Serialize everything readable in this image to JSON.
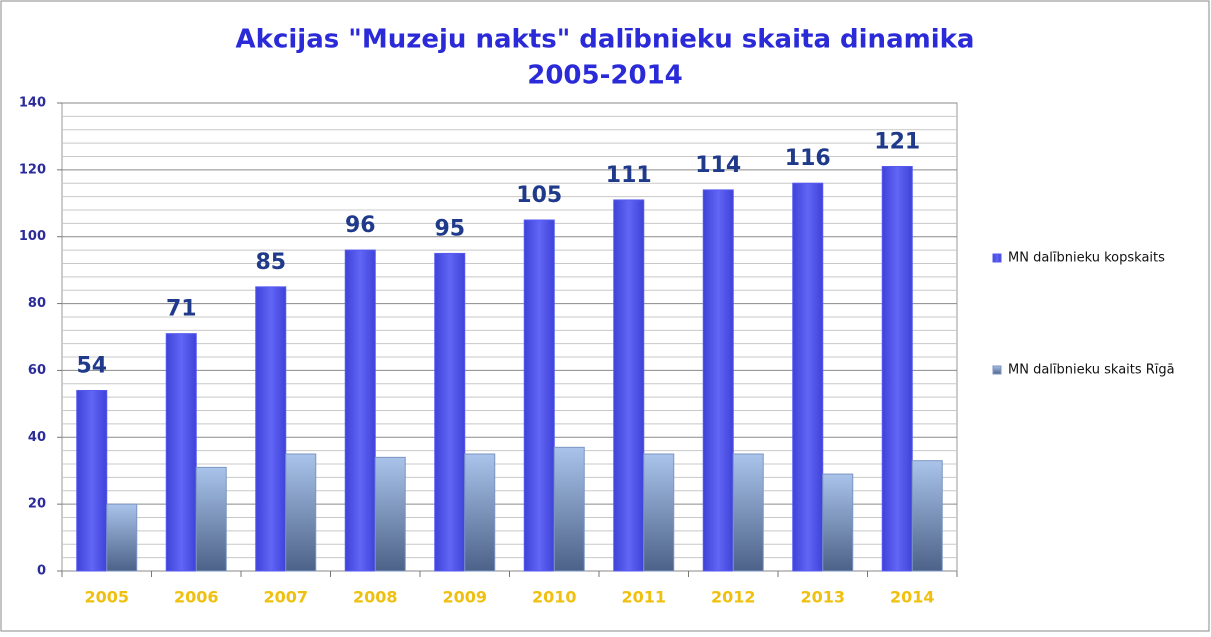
{
  "chart_data": {
    "type": "bar",
    "title": "Akcijas \"Muzeju nakts\" dalībnieku skaita dinamika",
    "subtitle": "2005-2014",
    "categories": [
      "2005",
      "2006",
      "2007",
      "2008",
      "2009",
      "2010",
      "2011",
      "2012",
      "2013",
      "2014"
    ],
    "series": [
      {
        "name": "MN dalībnieku kopskaits",
        "color": "#5559ef",
        "values": [
          54,
          71,
          85,
          96,
          95,
          105,
          111,
          114,
          116,
          121
        ],
        "data_labels": true
      },
      {
        "name": "MN dalībnieku skaits Rīgā",
        "color": "#7b95c4",
        "values": [
          20,
          31,
          35,
          34,
          35,
          37,
          35,
          35,
          29,
          33
        ],
        "data_labels": false
      }
    ],
    "ylim": [
      0,
      140
    ],
    "yticks": [
      0,
      20,
      40,
      60,
      80,
      100,
      120,
      140
    ],
    "grid": true,
    "legend": "right"
  }
}
